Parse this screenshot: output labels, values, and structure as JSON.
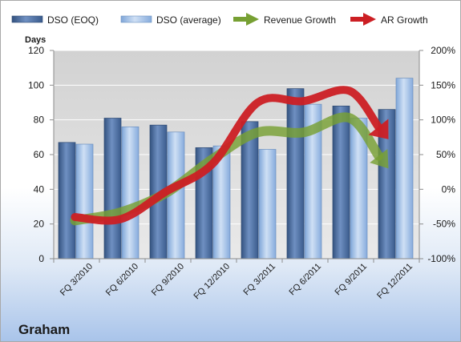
{
  "company": "Graham",
  "chart_data": {
    "type": "bar",
    "categories": [
      "FQ 3/2010",
      "FQ 6/2010",
      "FQ 9/2010",
      "FQ 12/2010",
      "FQ 3/2011",
      "FQ 6/2011",
      "FQ 9/2011",
      "FQ 12/2011"
    ],
    "series": [
      {
        "name": "DSO (EOQ)",
        "type": "bar",
        "axis": "left",
        "values": [
          67,
          81,
          77,
          64,
          79,
          98,
          88,
          86
        ],
        "color": "#4a6fa5"
      },
      {
        "name": "DSO (average)",
        "type": "bar",
        "axis": "left",
        "values": [
          66,
          76,
          73,
          65,
          63,
          89,
          81,
          104
        ],
        "color": "#8db4e2"
      },
      {
        "name": "Revenue Growth",
        "type": "arrow-line",
        "axis": "right",
        "values": [
          -45,
          -33,
          -5,
          43,
          82,
          82,
          103,
          30
        ],
        "color": "#77a033"
      },
      {
        "name": "AR Growth",
        "type": "arrow-line",
        "axis": "right",
        "values": [
          -40,
          -43,
          -3,
          36,
          125,
          127,
          142,
          72
        ],
        "color": "#cc1f24"
      }
    ],
    "ylabel": "Days",
    "ylim": [
      0,
      120
    ],
    "yticks": [
      "0",
      "20",
      "40",
      "60",
      "80",
      "100",
      "120"
    ],
    "y2lim": [
      -100,
      200
    ],
    "y2ticks": [
      "-100%",
      "-50%",
      "0%",
      "50%",
      "100%",
      "150%",
      "200%"
    ],
    "grid": true,
    "legend": "top"
  }
}
